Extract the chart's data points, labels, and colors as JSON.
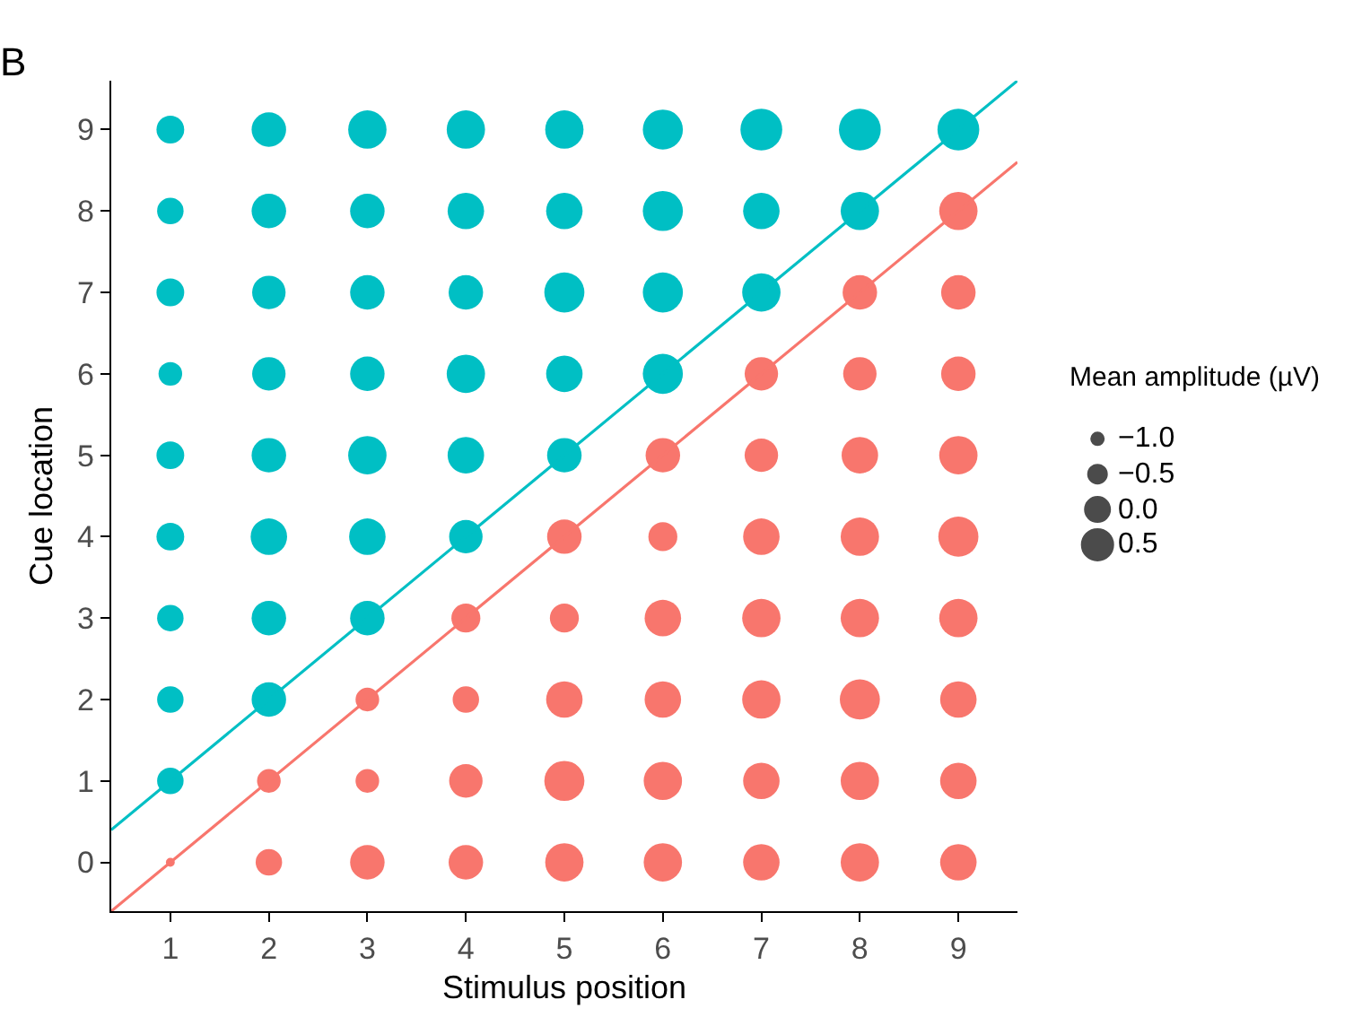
{
  "chart_data": {
    "type": "bubble",
    "title": "B",
    "xlabel": "Stimulus position",
    "ylabel": "Cue location",
    "legend_title": "Mean amplitude (µV)",
    "annotations": [
      "−1.0",
      "−0.5",
      "0.0",
      "0.5"
    ],
    "xlim": [
      0.4,
      9.6
    ],
    "ylim": [
      -0.6,
      9.6
    ],
    "xticks": [
      1,
      2,
      3,
      4,
      5,
      6,
      7,
      8,
      9
    ],
    "yticks": [
      0,
      1,
      2,
      3,
      4,
      5,
      6,
      7,
      8,
      9
    ],
    "series": [
      {
        "color": "#00bfc4",
        "x": [
          1,
          2,
          3,
          4,
          5,
          6,
          7,
          8,
          9,
          1,
          2,
          3,
          4,
          5,
          6,
          7,
          8,
          1,
          2,
          3,
          4,
          5,
          6,
          7,
          1,
          2,
          3,
          4,
          5,
          6,
          1,
          2,
          3,
          4,
          5,
          1,
          2,
          3,
          4,
          1,
          2,
          3,
          1,
          2,
          1
        ],
        "values": [
          9,
          9,
          9,
          9,
          9,
          9,
          9,
          9,
          9,
          8,
          8,
          8,
          8,
          8,
          8,
          8,
          8,
          7,
          7,
          7,
          7,
          7,
          7,
          7,
          6,
          6,
          6,
          6,
          6,
          6,
          5,
          5,
          5,
          5,
          5,
          4,
          4,
          4,
          4,
          3,
          3,
          3,
          2,
          2,
          1
        ],
        "sizes": [
          0.44,
          0.68,
          0.84,
          0.84,
          0.84,
          0.92,
          1,
          1,
          1,
          0.4,
          0.68,
          0.68,
          0.76,
          0.76,
          0.92,
          0.76,
          0.84,
          0.44,
          0.64,
          0.68,
          0.68,
          0.92,
          0.92,
          0.84,
          0.32,
          0.64,
          0.68,
          0.84,
          0.76,
          0.92,
          0.44,
          0.68,
          0.84,
          0.76,
          0.68,
          0.44,
          0.76,
          0.76,
          0.64,
          0.4,
          0.68,
          0.68,
          0.4,
          0.68,
          0.4
        ]
      },
      {
        "color": "#f8766d",
        "x": [
          9,
          8,
          9,
          7,
          8,
          9,
          6,
          7,
          8,
          9,
          5,
          6,
          7,
          8,
          9,
          4,
          5,
          6,
          7,
          8,
          9,
          3,
          4,
          5,
          6,
          7,
          8,
          9,
          2,
          3,
          4,
          5,
          6,
          7,
          8,
          9,
          1,
          2,
          3,
          4,
          5,
          6,
          7,
          8,
          9
        ],
        "values": [
          8,
          7,
          7,
          6,
          6,
          6,
          5,
          5,
          5,
          5,
          4,
          4,
          4,
          4,
          4,
          3,
          3,
          3,
          3,
          3,
          3,
          2,
          2,
          2,
          2,
          2,
          2,
          2,
          1,
          1,
          1,
          1,
          1,
          1,
          1,
          1,
          0,
          0,
          0,
          0,
          0,
          0,
          0,
          0,
          0
        ],
        "sizes": [
          0.84,
          0.68,
          0.68,
          0.64,
          0.64,
          0.68,
          0.68,
          0.64,
          0.76,
          0.84,
          0.68,
          0.48,
          0.76,
          0.84,
          0.92,
          0.48,
          0.48,
          0.76,
          0.84,
          0.84,
          0.84,
          0.32,
          0.4,
          0.76,
          0.76,
          0.84,
          0.92,
          0.76,
          0.32,
          0.32,
          0.64,
          0.92,
          0.84,
          0.76,
          0.84,
          0.76,
          0.045,
          0.4,
          0.68,
          0.68,
          0.84,
          0.84,
          0.76,
          0.84,
          0.76
        ]
      },
      {
        "type": "line",
        "marker": "none",
        "color": "#00bfc4",
        "x": [
          0.4,
          9.6
        ],
        "values": [
          0.4,
          9.6
        ]
      },
      {
        "type": "line",
        "marker": "none",
        "color": "#f8766d",
        "x": [
          0.4,
          9.6
        ],
        "values": [
          -0.6,
          8.6
        ]
      }
    ]
  }
}
